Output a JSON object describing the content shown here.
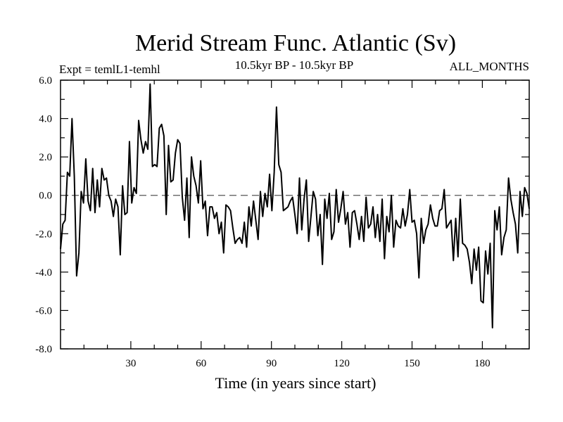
{
  "chart_data": {
    "type": "line",
    "title": "Merid Stream Func. Atlantic (Sv)",
    "subtitle_left": "Expt = temlL1-temhl",
    "subtitle_center": "10.5kyr BP - 10.5kyr BP",
    "subtitle_right": "ALL_MONTHS",
    "xlabel": "Time (in years since start)",
    "ylabel": "",
    "xlim": [
      0,
      200
    ],
    "ylim": [
      -8,
      6
    ],
    "xticks": [
      30,
      60,
      90,
      120,
      150,
      180
    ],
    "yticks": [
      -8,
      -6,
      -4,
      -2,
      0,
      2,
      4,
      6
    ],
    "ytick_labels": [
      "-8.0",
      "-6.0",
      "-4.0",
      "-2.0",
      "0.0",
      "2.0",
      "4.0",
      "6.0"
    ],
    "reference_line": 0,
    "series": [
      {
        "name": "Merid Stream Func. Atlantic",
        "values": [
          -2.8,
          -1.5,
          -1.3,
          1.2,
          1.0,
          4.0,
          1.0,
          -4.2,
          -3.0,
          0.2,
          -0.4,
          1.9,
          -0.3,
          -0.8,
          1.4,
          -0.9,
          0.8,
          -0.6,
          1.4,
          0.8,
          0.9,
          0.0,
          -0.3,
          -1.1,
          -0.2,
          -0.6,
          -3.1,
          0.5,
          -1.0,
          -0.9,
          2.8,
          -0.4,
          0.4,
          0.1,
          3.9,
          2.9,
          2.2,
          2.8,
          2.4,
          5.8,
          1.5,
          1.6,
          1.5,
          3.5,
          3.7,
          3.1,
          -1.0,
          2.6,
          0.7,
          0.8,
          2.2,
          2.9,
          2.7,
          -0.1,
          -1.3,
          0.9,
          -2.2,
          2.0,
          1.0,
          0.5,
          -0.4,
          1.8,
          -0.7,
          -0.3,
          -2.1,
          -0.6,
          -0.6,
          -1.2,
          -0.9,
          -2.0,
          -1.4,
          -3.0,
          -0.5,
          -0.6,
          -0.8,
          -1.7,
          -2.5,
          -2.3,
          -2.2,
          -2.5,
          -1.4,
          -2.7,
          -0.6,
          -1.6,
          -0.3,
          -1.3,
          -2.3,
          0.2,
          -1.1,
          0.1,
          -0.6,
          1.1,
          -0.8,
          1.2,
          4.6,
          1.6,
          1.2,
          -0.8,
          -0.7,
          -0.6,
          -0.3,
          -0.1,
          -1.0,
          -2.0,
          0.9,
          -1.8,
          -0.2,
          0.8,
          -2.4,
          -1.1,
          0.2,
          -0.2,
          -2.1,
          -1.0,
          -3.6,
          -0.2,
          -1.2,
          0.1,
          -2.3,
          -1.9,
          0.3,
          -1.4,
          -0.7,
          0.2,
          -1.5,
          -0.9,
          -2.7,
          -0.9,
          -0.8,
          -1.5,
          -2.3,
          -1.1,
          -2.4,
          -0.1,
          -1.7,
          -1.5,
          -0.6,
          -2.2,
          -1.0,
          -2.4,
          -0.2,
          -3.3,
          -1.1,
          -1.9,
          0.0,
          -2.7,
          -1.3,
          -1.6,
          -1.7,
          -0.7,
          -1.6,
          -1.0,
          0.3,
          -1.4,
          -1.3,
          -2.0,
          -4.3,
          -1.2,
          -2.5,
          -1.8,
          -1.5,
          -0.5,
          -1.2,
          -1.6,
          -1.6,
          -0.8,
          -0.7,
          0.3,
          -1.7,
          -1.5,
          -1.3,
          -3.4,
          -1.2,
          -3.2,
          -0.2,
          -2.5,
          -2.6,
          -2.8,
          -3.5,
          -4.6,
          -2.8,
          -3.9,
          -2.7,
          -5.5,
          -5.6,
          -2.9,
          -4.1,
          -2.5,
          -6.9,
          -0.8,
          -1.8,
          -0.6,
          -3.1,
          -2.2,
          -1.8,
          0.9,
          -0.2,
          -0.9,
          -1.5,
          -3.0,
          0.2,
          -1.1,
          0.4,
          0.1,
          -0.7
        ],
        "color": "#000000"
      }
    ]
  }
}
